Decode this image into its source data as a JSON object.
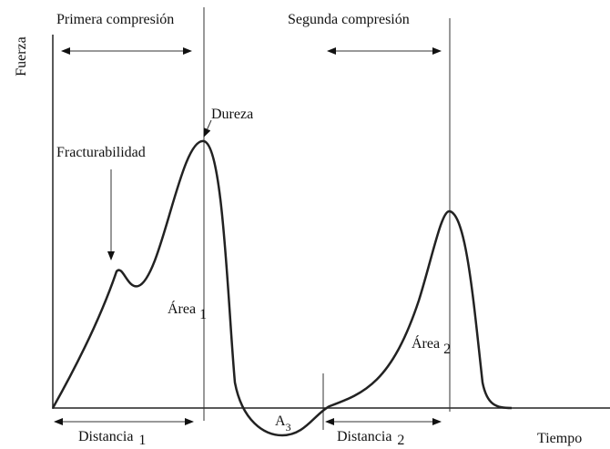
{
  "axes": {
    "y_label": "Fuerza",
    "x_label": "Tiempo"
  },
  "phases": [
    "Primera compresión",
    "Segunda compresión"
  ],
  "annotations": {
    "peak": "Dureza",
    "first_peak": "Fracturabilidad"
  },
  "areas": [
    {
      "label": "Área",
      "subscript": "1"
    },
    {
      "label": "Área",
      "subscript": "2"
    },
    {
      "label": "A",
      "subscript": "3"
    }
  ],
  "distances": [
    {
      "label": "Distancia",
      "subscript": "1"
    },
    {
      "label": "Distancia",
      "subscript": "2"
    }
  ]
}
